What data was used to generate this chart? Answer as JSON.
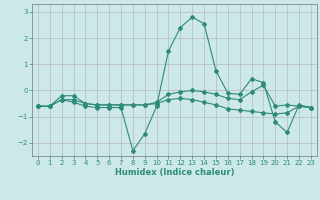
{
  "title": "",
  "xlabel": "Humidex (Indice chaleur)",
  "x": [
    0,
    1,
    2,
    3,
    4,
    5,
    6,
    7,
    8,
    9,
    10,
    11,
    12,
    13,
    14,
    15,
    16,
    17,
    18,
    19,
    20,
    21,
    22,
    23
  ],
  "series1": [
    -0.6,
    -0.6,
    -0.35,
    -0.45,
    -0.6,
    -0.65,
    -0.65,
    -0.65,
    -2.3,
    -1.65,
    -0.6,
    1.5,
    2.4,
    2.8,
    2.55,
    0.75,
    -0.1,
    -0.15,
    0.45,
    0.3,
    -1.2,
    -1.6,
    -0.55,
    -0.65
  ],
  "series2": [
    -0.6,
    -0.6,
    -0.35,
    -0.35,
    -0.5,
    -0.55,
    -0.55,
    -0.55,
    -0.55,
    -0.55,
    -0.5,
    -0.35,
    -0.3,
    -0.35,
    -0.45,
    -0.55,
    -0.7,
    -0.75,
    -0.8,
    -0.85,
    -0.9,
    -0.85,
    -0.6,
    -0.65
  ],
  "series3": [
    -0.6,
    -0.6,
    -0.2,
    -0.2,
    -0.5,
    -0.55,
    -0.55,
    -0.55,
    -0.55,
    -0.55,
    -0.45,
    -0.15,
    -0.05,
    0.0,
    -0.05,
    -0.15,
    -0.3,
    -0.35,
    -0.05,
    0.2,
    -0.6,
    -0.55,
    -0.6,
    -0.65
  ],
  "color": "#2e8b7a",
  "bg_color": "#cce8e8",
  "grid_color": "#b0b0b0",
  "ylim": [
    -2.5,
    3.3
  ],
  "yticks": [
    -2,
    -1,
    0,
    1,
    2,
    3
  ],
  "xticks": [
    0,
    1,
    2,
    3,
    4,
    5,
    6,
    7,
    8,
    9,
    10,
    11,
    12,
    13,
    14,
    15,
    16,
    17,
    18,
    19,
    20,
    21,
    22,
    23
  ],
  "linewidth": 0.8,
  "markersize": 2.0
}
